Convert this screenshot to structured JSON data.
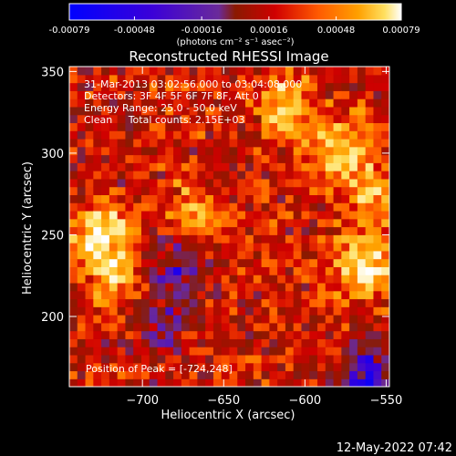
{
  "chart_data": {
    "type": "heatmap",
    "title": "Reconstructed RHESSI Image",
    "xlabel": "Heliocentric X (arcsec)",
    "ylabel": "Heliocentric Y (arcsec)",
    "xlim": [
      -745,
      -548
    ],
    "ylim": [
      157,
      353
    ],
    "xticks": [
      -700,
      -650,
      -600,
      -550
    ],
    "yticks": [
      200,
      250,
      300,
      350
    ],
    "colorbar": {
      "min": -0.00079,
      "max": 0.00079,
      "ticks": [
        -0.00079,
        -0.00048,
        -0.00016,
        0.00016,
        0.00048,
        0.00079
      ],
      "tick_labels": [
        "-0.00079",
        "-0.00048",
        "-0.00016",
        "0.00016",
        "0.00048",
        "0.00079"
      ],
      "unit_label": "(photons cm⁻² s⁻¹ asec⁻²)",
      "colormap": [
        "#0000ff",
        "#3b00d8",
        "#6a2a9a",
        "#8a1a00",
        "#d00000",
        "#ff5a00",
        "#ffa000",
        "#ffe060",
        "#ffffff"
      ]
    },
    "info_lines": [
      "31-Mar-2013 03:02:56.000 to 03:04:08.000",
      "Detectors: 3F 4F 5F 6F 7F 8F, Att 0",
      "Energy Range: 25.0 - 50.0 keV",
      "Clean     Total counts: 2.15E+03"
    ],
    "peak_label": "Position of Peak = [-724,248]",
    "peak_position": [
      -724,
      248
    ],
    "hot_regions": [
      {
        "x": -724,
        "y": 248,
        "value": 0.00079
      },
      {
        "x": -562,
        "y": 232,
        "value": 0.0007
      },
      {
        "x": -577,
        "y": 302,
        "value": 0.0006
      },
      {
        "x": -612,
        "y": 330,
        "value": 0.0005
      },
      {
        "x": -667,
        "y": 262,
        "value": 0.00045
      },
      {
        "x": -714,
        "y": 218,
        "value": 0.0004
      },
      {
        "x": -555,
        "y": 275,
        "value": 0.00045
      }
    ],
    "cold_regions": [
      {
        "x": -678,
        "y": 232,
        "value": -0.0004
      },
      {
        "x": -560,
        "y": 162,
        "value": -0.0005
      },
      {
        "x": -690,
        "y": 195,
        "value": -0.0003
      }
    ]
  },
  "footer": {
    "timestamp": "12-May-2022 07:42"
  }
}
